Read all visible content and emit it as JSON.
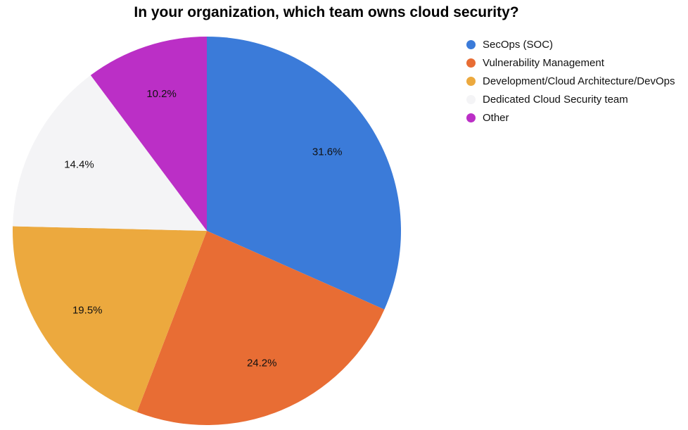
{
  "chart_data": {
    "type": "pie",
    "title": "In your organization, which team owns cloud security?",
    "categories": [
      "SecOps (SOC)",
      "Vulnerability Management",
      "Development/Cloud Architecture/DevOps",
      "Dedicated Cloud Security team",
      "Other"
    ],
    "values": [
      31.6,
      24.2,
      19.5,
      14.4,
      10.2
    ],
    "labels": [
      "31.6%",
      "24.2%",
      "19.5%",
      "14.4%",
      "10.2%"
    ],
    "colors": [
      "#3b7bd9",
      "#e86d34",
      "#eca93e",
      "#f4f4f6",
      "#bb2fc6"
    ],
    "start_angle_deg": 0,
    "direction": "clockwise",
    "legend_position": "right"
  }
}
